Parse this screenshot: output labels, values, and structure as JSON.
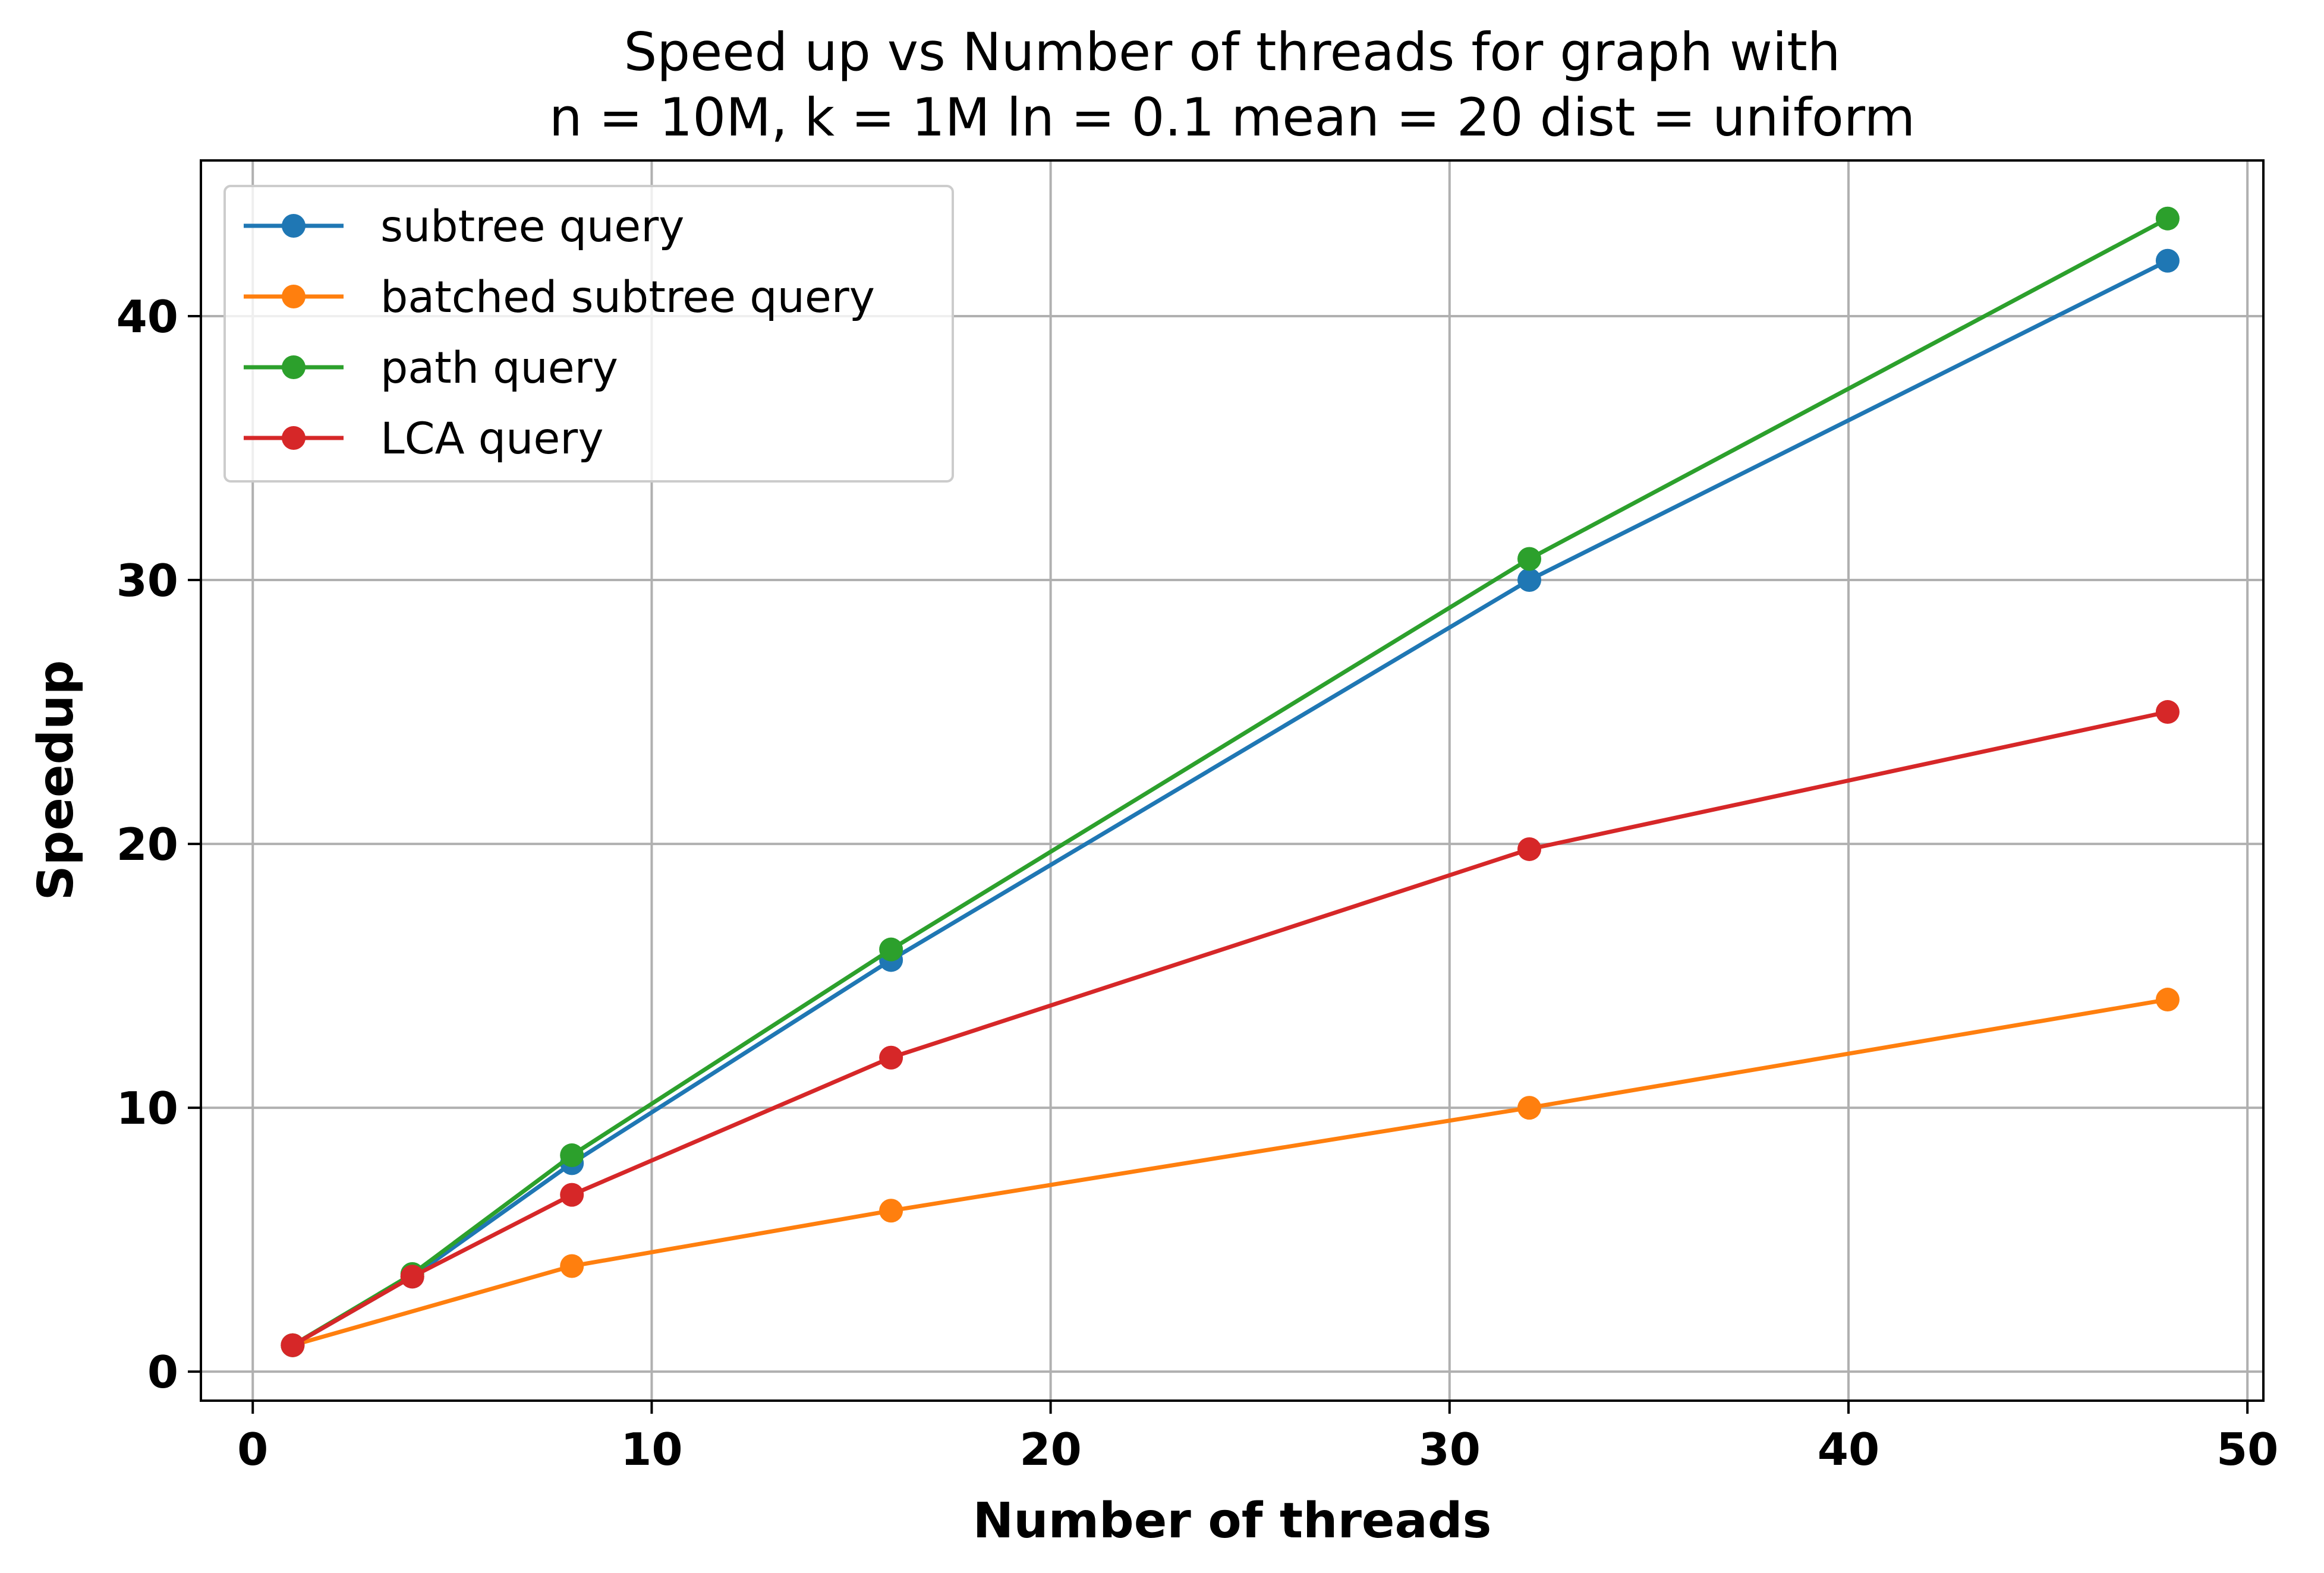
{
  "chart_data": {
    "type": "line",
    "title_lines": [
      "Speed up vs Number of threads for graph with",
      "n = 10M, k = 1M ln = 0.1 mean = 20 dist = uniform"
    ],
    "xlabel": "Number of threads",
    "ylabel": "Speedup",
    "xlim": [
      -1.3,
      50.4
    ],
    "ylim": [
      -1.1,
      45.9
    ],
    "xticks": [
      0,
      10,
      20,
      30,
      40,
      50
    ],
    "yticks": [
      0,
      10,
      20,
      30,
      40
    ],
    "grid": true,
    "legend_position": "upper-left",
    "series": [
      {
        "name": "subtree query",
        "color": "#1f77b4",
        "x": [
          1,
          4,
          8,
          16,
          32,
          48
        ],
        "y": [
          1.0,
          3.6,
          7.9,
          15.6,
          30.0,
          42.1
        ]
      },
      {
        "name": "batched subtree query",
        "color": "#ff7f0e",
        "x": [
          1,
          8,
          16,
          32,
          48
        ],
        "y": [
          1.0,
          4.0,
          6.1,
          10.0,
          14.1
        ]
      },
      {
        "name": "path query",
        "color": "#2ca02c",
        "x": [
          1,
          4,
          8,
          16,
          32,
          48
        ],
        "y": [
          1.0,
          3.7,
          8.2,
          16.0,
          30.8,
          43.7
        ]
      },
      {
        "name": "LCA query",
        "color": "#d62728",
        "x": [
          1,
          4,
          8,
          16,
          32,
          48
        ],
        "y": [
          1.0,
          3.6,
          6.7,
          11.9,
          19.8,
          25.0
        ]
      }
    ]
  }
}
